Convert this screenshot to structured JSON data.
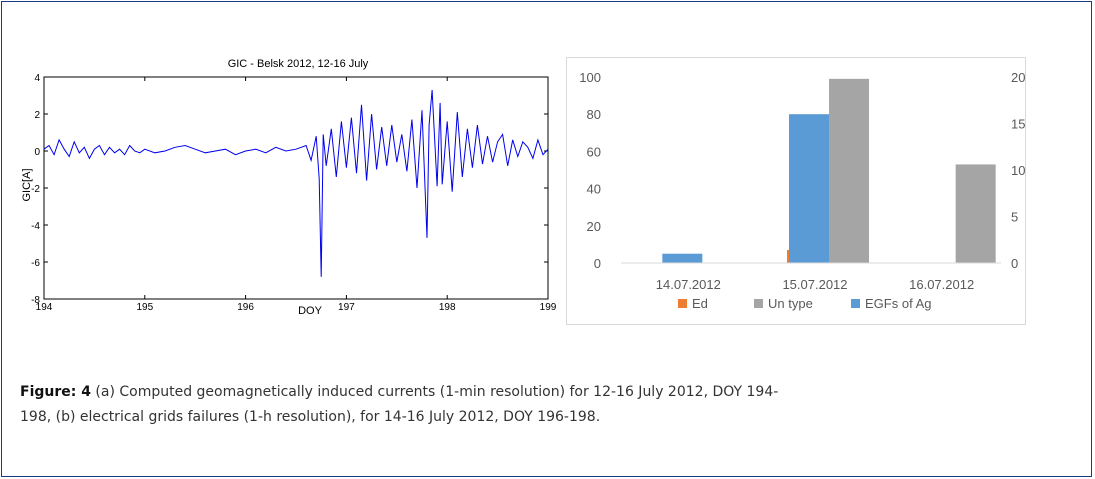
{
  "chart_data": [
    {
      "type": "line",
      "title": "GIC -  Belsk 2012, 12-16 July",
      "xlabel": "DOY",
      "ylabel": "GIC[A]",
      "xlim": [
        194,
        199
      ],
      "ylim": [
        -8,
        4
      ],
      "xticks": [
        194,
        195,
        196,
        197,
        198,
        199
      ],
      "yticks": [
        4,
        2,
        0,
        -2,
        -4,
        -6,
        -8
      ],
      "grid": false,
      "series": [
        {
          "color": "#0000ee",
          "x": [
            194.0,
            194.05,
            194.1,
            194.15,
            194.2,
            194.25,
            194.3,
            194.35,
            194.4,
            194.45,
            194.5,
            194.55,
            194.6,
            194.65,
            194.7,
            194.75,
            194.8,
            194.85,
            194.9,
            194.95,
            195.0,
            195.1,
            195.2,
            195.3,
            195.4,
            195.5,
            195.6,
            195.7,
            195.8,
            195.9,
            196.0,
            196.1,
            196.2,
            196.3,
            196.4,
            196.5,
            196.6,
            196.65,
            196.7,
            196.73,
            196.75,
            196.77,
            196.8,
            196.85,
            196.9,
            196.95,
            197.0,
            197.05,
            197.1,
            197.15,
            197.2,
            197.25,
            197.3,
            197.35,
            197.4,
            197.45,
            197.5,
            197.55,
            197.6,
            197.65,
            197.7,
            197.75,
            197.8,
            197.82,
            197.85,
            197.9,
            197.93,
            197.95,
            198.0,
            198.05,
            198.1,
            198.15,
            198.2,
            198.25,
            198.3,
            198.35,
            198.4,
            198.45,
            198.5,
            198.55,
            198.6,
            198.65,
            198.7,
            198.75,
            198.8,
            198.85,
            198.9,
            198.95,
            199.0
          ],
          "y": [
            0.1,
            0.3,
            -0.2,
            0.6,
            0.1,
            -0.3,
            0.5,
            -0.1,
            0.2,
            -0.4,
            0.1,
            0.3,
            -0.2,
            0.2,
            -0.1,
            0.1,
            -0.2,
            0.3,
            0.0,
            -0.1,
            0.1,
            -0.1,
            0.0,
            0.2,
            0.3,
            0.1,
            -0.1,
            0.0,
            0.1,
            -0.2,
            0.0,
            0.1,
            -0.1,
            0.2,
            0.0,
            0.1,
            0.3,
            -0.5,
            0.8,
            -1.5,
            -6.8,
            0.9,
            -0.8,
            1.2,
            -1.4,
            1.6,
            -0.9,
            1.8,
            -1.2,
            2.5,
            -1.6,
            2.0,
            -1.0,
            1.3,
            -0.8,
            1.4,
            -0.6,
            0.9,
            -1.1,
            1.7,
            -2.0,
            2.2,
            -4.7,
            1.4,
            3.3,
            -1.9,
            2.6,
            -1.8,
            1.6,
            -2.2,
            2.1,
            -1.4,
            1.2,
            -0.9,
            1.4,
            -0.7,
            0.8,
            -0.6,
            0.5,
            0.9,
            -0.8,
            0.6,
            -0.3,
            0.5,
            0.2,
            -0.4,
            0.6,
            -0.2,
            0.1
          ]
        }
      ]
    },
    {
      "type": "bar",
      "categories": [
        "14.07.2012",
        "15.07.2012",
        "16.07.2012"
      ],
      "y_left_ticks": [
        0,
        20,
        40,
        60,
        80,
        100
      ],
      "y_right_ticks": [
        0,
        5,
        10,
        15,
        20
      ],
      "ylim": [
        0,
        100
      ],
      "y2lim": [
        0,
        20
      ],
      "legend": "bottom",
      "series": [
        {
          "name": "Ed",
          "color": "#ed7d31",
          "axis": "left",
          "values": [
            0,
            7,
            0
          ]
        },
        {
          "name": "Un type",
          "color": "#a5a5a5",
          "axis": "left",
          "values": [
            0,
            99,
            53
          ]
        },
        {
          "name": "EGFs of Ag",
          "color": "#5b9bd5",
          "axis": "right",
          "values": [
            1,
            16,
            0
          ]
        }
      ]
    }
  ],
  "caption": {
    "label": "Figure: 4",
    "text_line1": " (a) Computed geomagnetically induced currents (1-min resolution) for 12-16 July 2012, DOY 194-",
    "text_line2": "198, (b) electrical grids failures (1-h resolution), for 14-16 July 2012, DOY 196-198."
  }
}
